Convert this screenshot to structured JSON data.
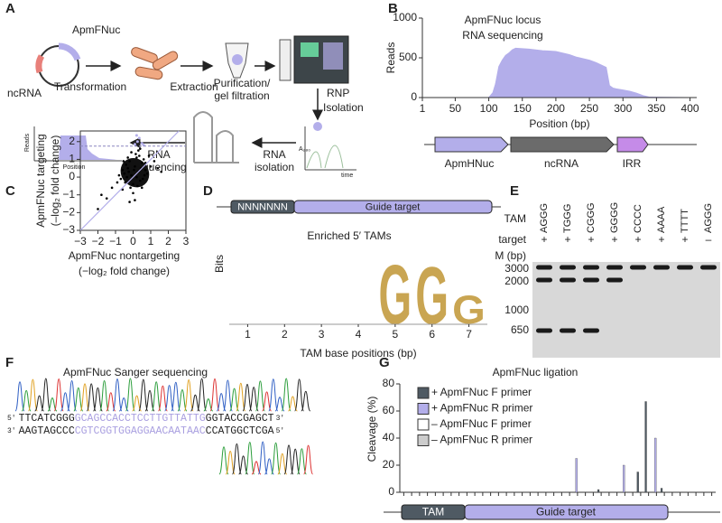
{
  "panel_labels": [
    "A",
    "B",
    "C",
    "D",
    "E",
    "F",
    "G"
  ],
  "workflow": {
    "plasmid_gene": "ApmFNuc",
    "plasmid_rna": "ncRNA",
    "transformation": "Transformation",
    "extraction": "Extraction",
    "purification": [
      "Purification/",
      "gel filtration"
    ],
    "rnp": [
      "RNP",
      "Isolation"
    ],
    "rna_isolation": [
      "RNA",
      "isolation"
    ],
    "rna_sequencing": [
      "RNA",
      "sequencing"
    ],
    "chromatogram_y": "A₂₈₀",
    "chromatogram_x": "time",
    "mini_plot_y": "Reads",
    "mini_plot_x": "Position"
  },
  "locus": {
    "genes": [
      "ApmHNuc",
      "ncRNA",
      "IRR"
    ]
  },
  "tam_header": {
    "n": "NNNNNNN",
    "guide": "Guide target"
  },
  "gel": {
    "tam_label": "TAM",
    "target_label": "target",
    "marker_label": "M (bp)",
    "lanes": [
      {
        "tam": "AGGG",
        "target": "+"
      },
      {
        "tam": "TGGG",
        "target": "+"
      },
      {
        "tam": "CGGG",
        "target": "+"
      },
      {
        "tam": "GGGG",
        "target": "+"
      },
      {
        "tam": "CCCC",
        "target": "+"
      },
      {
        "tam": "AAAA",
        "target": "+"
      },
      {
        "tam": "TTTT",
        "target": "+"
      },
      {
        "tam": "AGGG",
        "target": "–"
      }
    ],
    "ladder": [
      3000,
      2000,
      1000,
      650
    ]
  },
  "sanger": {
    "title": "ApmFNuc Sanger sequencing",
    "top": [
      "5′",
      "TTCATCGGG",
      "GCAGCCACCTCCTTGTTATTG",
      "GGTACCGAGCT",
      "3′"
    ],
    "bottom": [
      "3′",
      "AAGTAGCCC",
      "CGTCGGTGGAGGAACAATAAC",
      "CCATGGCTCGA",
      "5′"
    ]
  },
  "ligation_bar": {
    "tam": "TAM",
    "guide": "Guide target"
  },
  "chart_data": [
    {
      "type": "area",
      "title": [
        "ApmFNuc locus",
        "RNA sequencing"
      ],
      "xlabel": "Position (bp)",
      "ylabel": "Reads",
      "color": "#b3aeea",
      "x": [
        1,
        100,
        106,
        110,
        115,
        120,
        125,
        130,
        135,
        140,
        150,
        160,
        170,
        180,
        190,
        200,
        210,
        220,
        230,
        240,
        250,
        260,
        270,
        275,
        280,
        285,
        290,
        300,
        310,
        320,
        330,
        340,
        400
      ],
      "values": [
        0,
        0,
        60,
        170,
        390,
        470,
        530,
        560,
        600,
        620,
        615,
        610,
        600,
        590,
        585,
        580,
        560,
        540,
        510,
        490,
        470,
        440,
        400,
        380,
        150,
        120,
        110,
        95,
        80,
        55,
        25,
        5,
        0
      ],
      "xlim": [
        1,
        410
      ],
      "ylim": [
        0,
        1000
      ],
      "xticks": [
        1,
        50,
        100,
        150,
        200,
        250,
        300,
        350,
        400
      ],
      "yticks": [
        0,
        500,
        1000
      ]
    },
    {
      "type": "scatter",
      "xlabel": [
        "ApmFNuc nontargeting",
        "(−log₂ fold change)"
      ],
      "ylabel": [
        "ApmFNuc targeting",
        "(–log₂ fold change)"
      ],
      "color": "#000000",
      "x": [
        -0.5,
        -0.3,
        -0.1,
        0.1,
        0.3,
        0.5,
        0.7,
        -0.7,
        -0.2,
        0.2,
        0.4,
        0.0,
        -0.4,
        0.6,
        0.8,
        -0.6,
        -0.9,
        1.0,
        0.15,
        -0.15,
        0.35,
        -0.35,
        0.55,
        -0.55,
        0.05,
        0.25,
        -0.25,
        0.45,
        -0.45,
        0.65,
        -1.2,
        1.2,
        -1.5,
        1.4,
        -0.8,
        0.9,
        0.3,
        -0.1,
        0.0,
        0.2,
        -2.0,
        -1.8,
        1.6,
        0.1,
        0.5,
        -0.3,
        0.7,
        -0.6,
        0.4,
        -0.2
      ],
      "values": [
        0.2,
        0.5,
        0.1,
        0.6,
        0.3,
        0.8,
        0.4,
        -0.1,
        0.9,
        1.1,
        -0.2,
        -0.4,
        0.7,
        1.0,
        0.2,
        0.4,
        -0.3,
        0.6,
        1.3,
        -0.6,
        1.2,
        0.0,
        -0.1,
        0.9,
        0.4,
        -0.5,
        0.3,
        0.5,
        -0.3,
        0.1,
        -0.6,
        0.9,
        -1.2,
        0.5,
        0.1,
        1.2,
        1.5,
        1.4,
        -0.9,
        0.0,
        -1.8,
        -1.0,
        0.3,
        -1.3,
        -0.6,
        1.1,
        0.8,
        -0.7,
        1.6,
        -1.4
      ],
      "highlight": {
        "color": "#b3aeea",
        "x": [
          0.1,
          0.25,
          0.35,
          0.5,
          0.6,
          0.2
        ],
        "values": [
          1.85,
          2.0,
          2.2,
          1.9,
          1.8,
          2.35
        ]
      },
      "threshold": 1.75,
      "diagonal": true,
      "xlim": [
        -3,
        3
      ],
      "ylim": [
        -3,
        2.6
      ],
      "xticks": [
        {
          "value": -3,
          "label": "−3"
        },
        {
          "value": -2,
          "label": "−2"
        },
        {
          "value": -1,
          "label": "−1"
        },
        0,
        1,
        2,
        3
      ],
      "yticks": [
        {
          "value": -3,
          "label": "−3"
        },
        {
          "value": -2,
          "label": "−2"
        },
        {
          "value": -1,
          "label": "−1"
        },
        0,
        1,
        2
      ]
    },
    {
      "type": "logo",
      "title": "Enriched 5′ TAMs",
      "xlabel": "TAM base positions (bp)",
      "ylabel": "Bits",
      "categories": [
        1,
        2,
        3,
        4,
        5,
        6,
        7
      ],
      "series": [
        {
          "name": "G",
          "color": "#c9a552",
          "values": [
            0,
            0,
            0,
            0,
            1.55,
            1.5,
            0.75
          ]
        }
      ],
      "ylim": [
        0,
        2
      ]
    },
    {
      "type": "bar",
      "title": "ApmFNuc ligation",
      "ylabel": "Cleavage (%)",
      "legend": "upper left",
      "ylim": [
        0,
        80
      ],
      "yticks": [
        0,
        20,
        40,
        60,
        80
      ],
      "categories": [
        null,
        null,
        null,
        null,
        null,
        null,
        null,
        null,
        null,
        null,
        null,
        null,
        null,
        null,
        null,
        null,
        null,
        null,
        null,
        null,
        null,
        null,
        null,
        null,
        null,
        null,
        null,
        null,
        null,
        null,
        null,
        null,
        null,
        null,
        null,
        null,
        null,
        null,
        null,
        null
      ],
      "series": [
        {
          "name": "+ ApmFNuc F primer",
          "color": "#4f5a63",
          "values": [
            0,
            0,
            0,
            0,
            0,
            0,
            0,
            0,
            0,
            0,
            0,
            0,
            0,
            0,
            0,
            0,
            0,
            0,
            0,
            0,
            0,
            0,
            0,
            0,
            0,
            2,
            0,
            0,
            0,
            0,
            15,
            67,
            0,
            3,
            0,
            0,
            0,
            0,
            0,
            0
          ]
        },
        {
          "name": "+ ApmFNuc R primer",
          "color": "#b3aeea",
          "values": [
            0,
            0,
            0,
            0,
            0,
            0,
            0,
            0,
            0,
            0,
            0,
            0,
            0,
            0,
            0,
            0,
            0,
            0,
            0,
            0,
            0,
            0,
            25,
            0,
            0,
            0,
            0,
            0,
            20,
            0,
            0,
            0,
            40,
            0,
            0,
            0,
            0,
            0,
            0,
            0
          ]
        },
        {
          "name": "– ApmFNuc F primer",
          "color": "#ffffff",
          "values": [
            0,
            0,
            0,
            0,
            0,
            0,
            0,
            0,
            0,
            0,
            0,
            0,
            0,
            0,
            0,
            0,
            0,
            0,
            0,
            0,
            0,
            0,
            0,
            0,
            0,
            0,
            0,
            0,
            0,
            0,
            0,
            0,
            0,
            0,
            0,
            0,
            0,
            0,
            0,
            0
          ]
        },
        {
          "name": "– ApmFNuc R primer",
          "color": "#cccccc",
          "values": [
            0,
            0,
            0,
            0,
            0,
            0,
            0,
            0,
            0,
            0,
            0,
            0,
            0,
            0,
            0,
            0,
            0,
            0,
            0,
            0,
            0,
            0,
            0,
            0,
            0,
            0,
            0,
            0,
            0,
            0,
            0,
            0,
            0,
            0,
            0,
            0,
            0,
            0,
            0,
            0
          ]
        }
      ]
    }
  ]
}
